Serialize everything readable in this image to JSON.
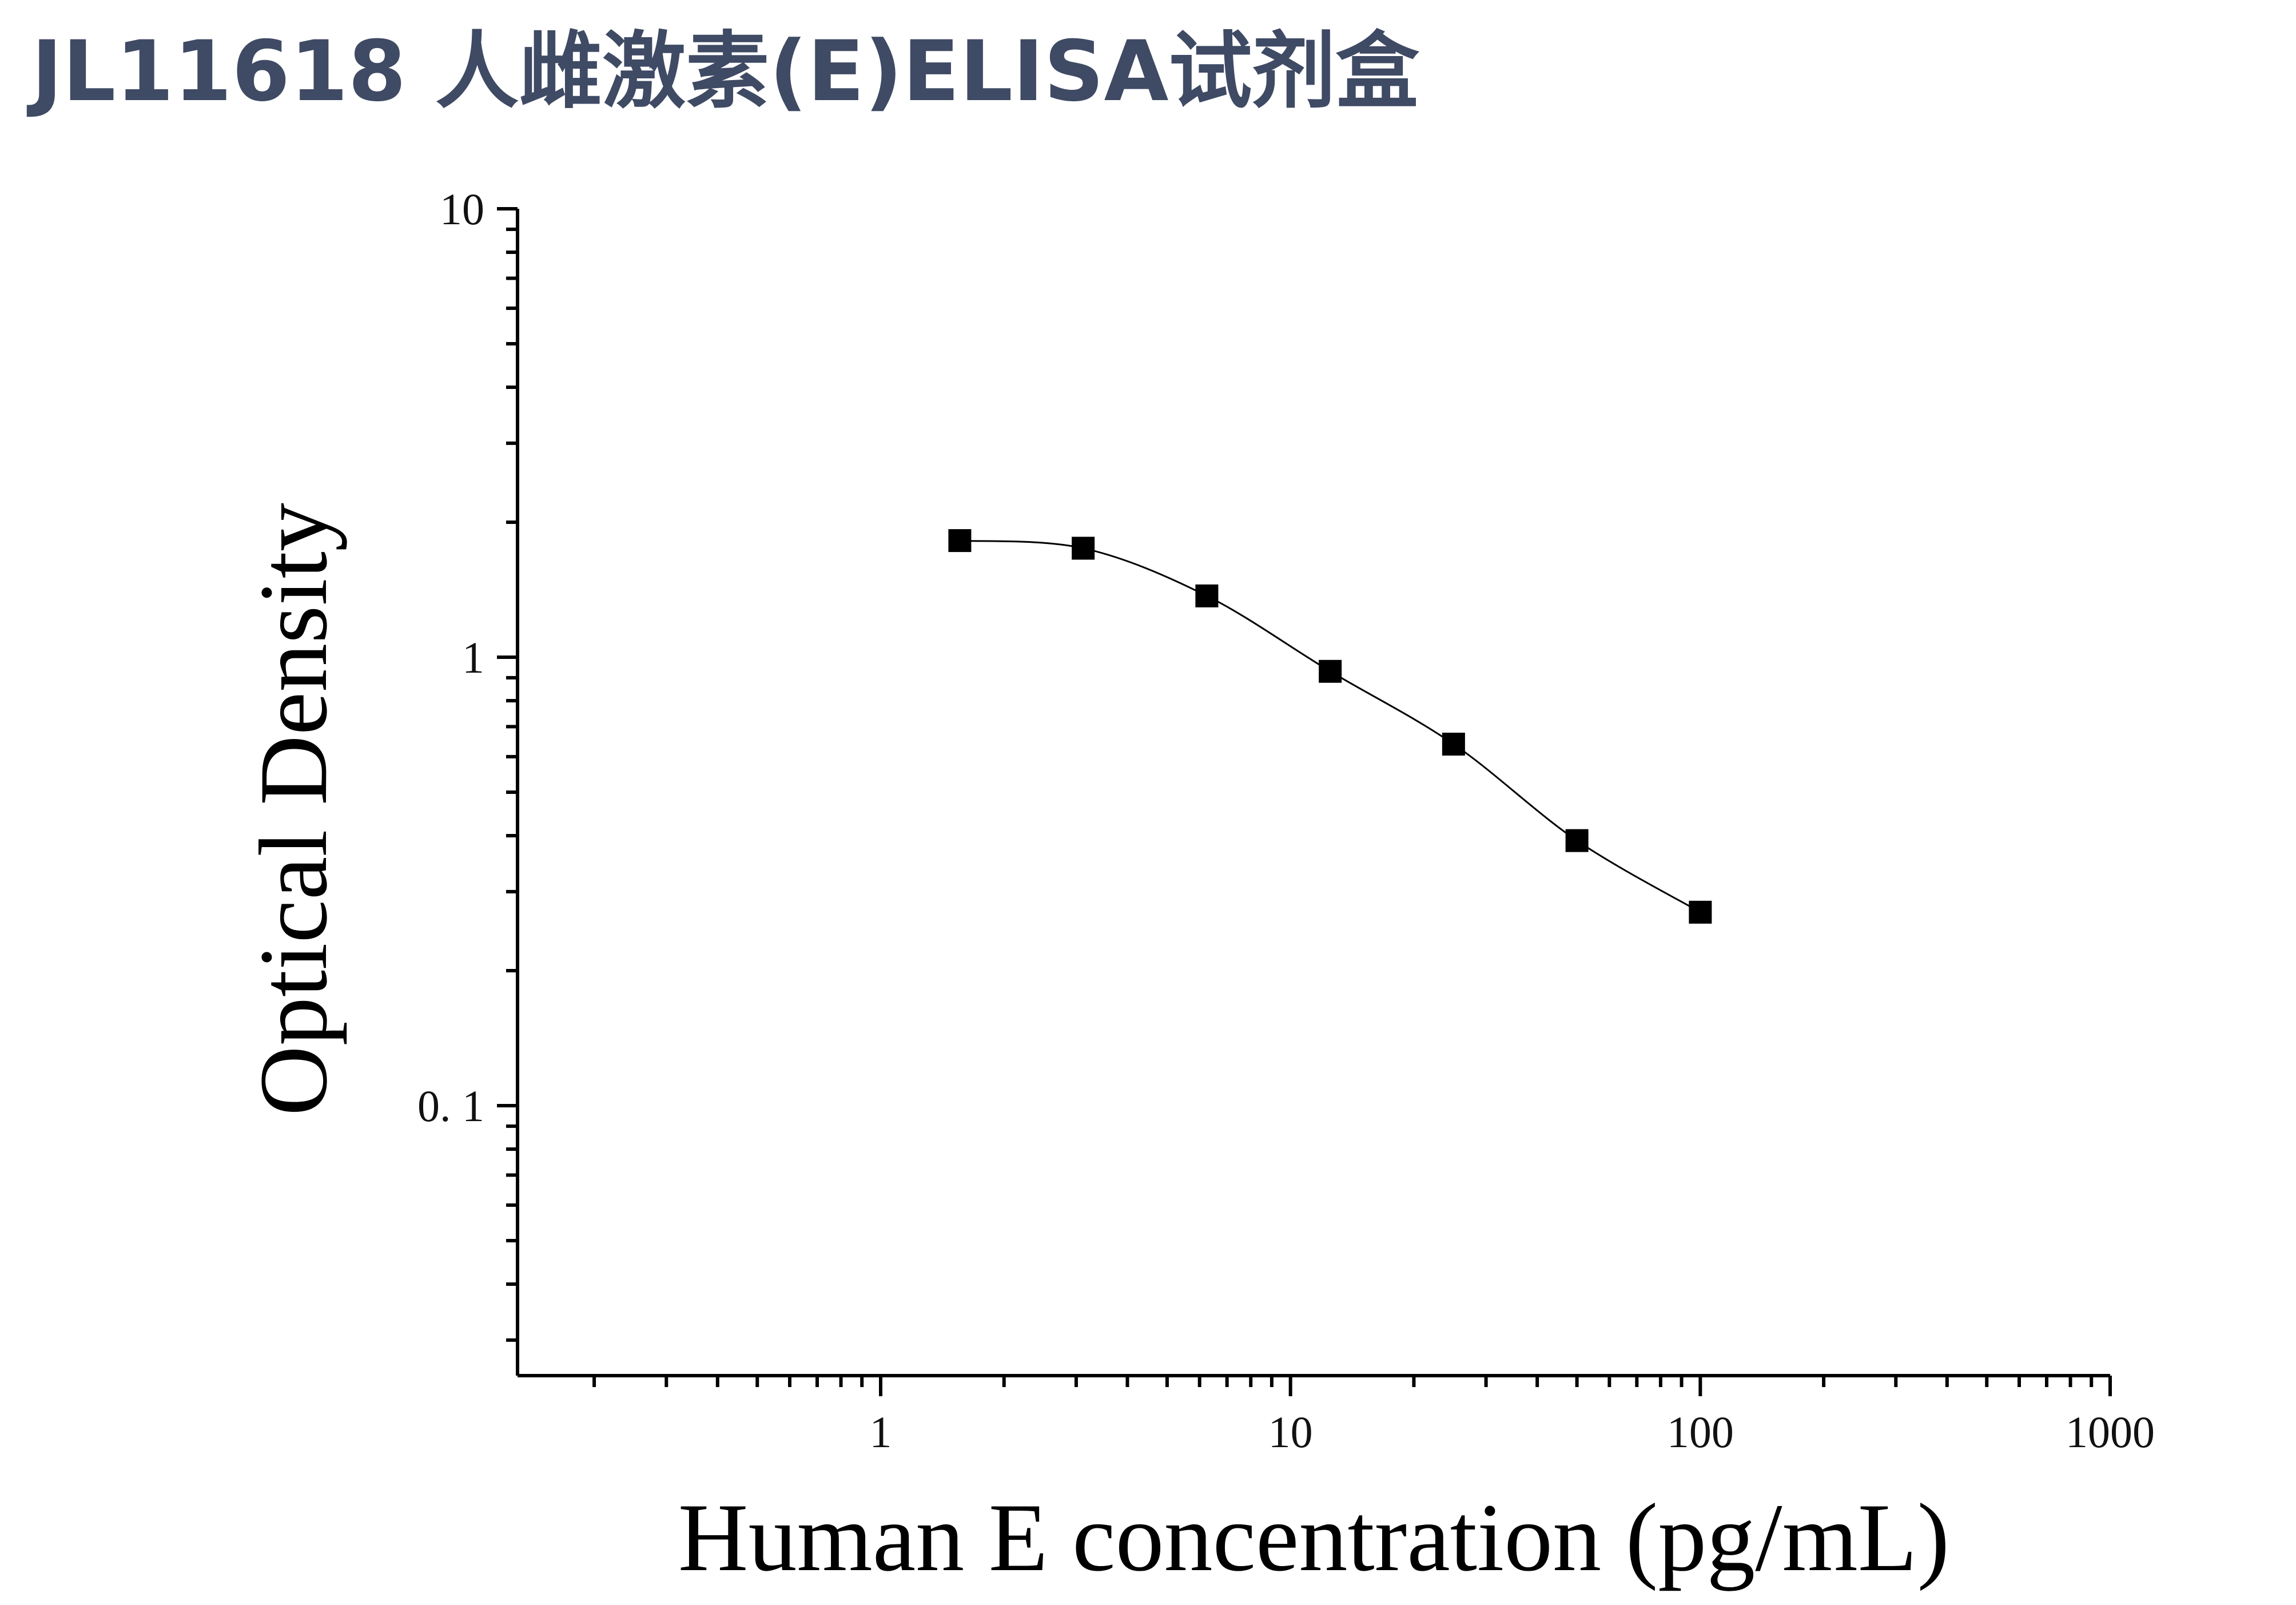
{
  "title": "JL11618 人雌激素(E)ELISA试剂盒",
  "chart_data": {
    "type": "scatter",
    "title": "JL11618 人雌激素(E)ELISA试剂盒",
    "xlabel": "Human E concentration (pg/mL)",
    "ylabel": "Optical Density",
    "x_scale": "log",
    "y_scale": "log",
    "xlim": [
      0.13,
      1000
    ],
    "ylim": [
      0.025,
      10
    ],
    "x_ticks": [
      1,
      10,
      100,
      1000
    ],
    "x_tick_labels": [
      "1",
      "10",
      "100",
      "1000"
    ],
    "y_ticks": [
      0.1,
      1,
      10
    ],
    "y_tick_labels": [
      "0. 1",
      "1",
      "10"
    ],
    "grid": false,
    "legend": "none",
    "series": [
      {
        "x": [
          1.56,
          3.12,
          6.25,
          12.5,
          25,
          50,
          100
        ],
        "y": [
          1.82,
          1.75,
          1.37,
          0.93,
          0.64,
          0.39,
          0.27
        ],
        "marker": "square",
        "color": "#000000",
        "fit_curve": true
      }
    ]
  }
}
